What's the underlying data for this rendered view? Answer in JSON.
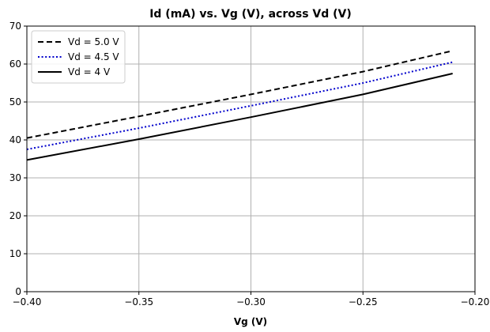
{
  "chart_data": {
    "type": "line",
    "title": "Id (mA) vs. Vg (V), across Vd (V)",
    "xlabel": "Vg (V)",
    "ylabel": "",
    "xlim": [
      -0.4,
      -0.2
    ],
    "ylim": [
      0,
      70
    ],
    "xticks": [
      -0.4,
      -0.35,
      -0.3,
      -0.25,
      -0.2
    ],
    "xtick_labels": [
      "−0.40",
      "−0.35",
      "−0.30",
      "−0.25",
      "−0.20"
    ],
    "yticks": [
      0,
      10,
      20,
      30,
      40,
      50,
      60,
      70
    ],
    "ytick_labels": [
      "0",
      "10",
      "20",
      "30",
      "40",
      "50",
      "60",
      "70"
    ],
    "grid": true,
    "legend_position": "top-left",
    "series": [
      {
        "name": "Vd = 5.0 V",
        "style": "dashed",
        "color": "#000000",
        "x": [
          -0.4,
          -0.35,
          -0.3,
          -0.25,
          -0.21
        ],
        "y": [
          40.5,
          46.2,
          52.0,
          58.0,
          63.5
        ]
      },
      {
        "name": "Vd = 4.5 V",
        "style": "dotted",
        "color": "#0000cc",
        "x": [
          -0.4,
          -0.35,
          -0.3,
          -0.25,
          -0.21
        ],
        "y": [
          37.5,
          43.1,
          49.0,
          55.0,
          60.5
        ]
      },
      {
        "name": "Vd = 4 V",
        "style": "solid",
        "color": "#000000",
        "x": [
          -0.4,
          -0.35,
          -0.3,
          -0.25,
          -0.21
        ],
        "y": [
          34.7,
          40.2,
          46.0,
          52.0,
          57.5
        ]
      }
    ]
  }
}
